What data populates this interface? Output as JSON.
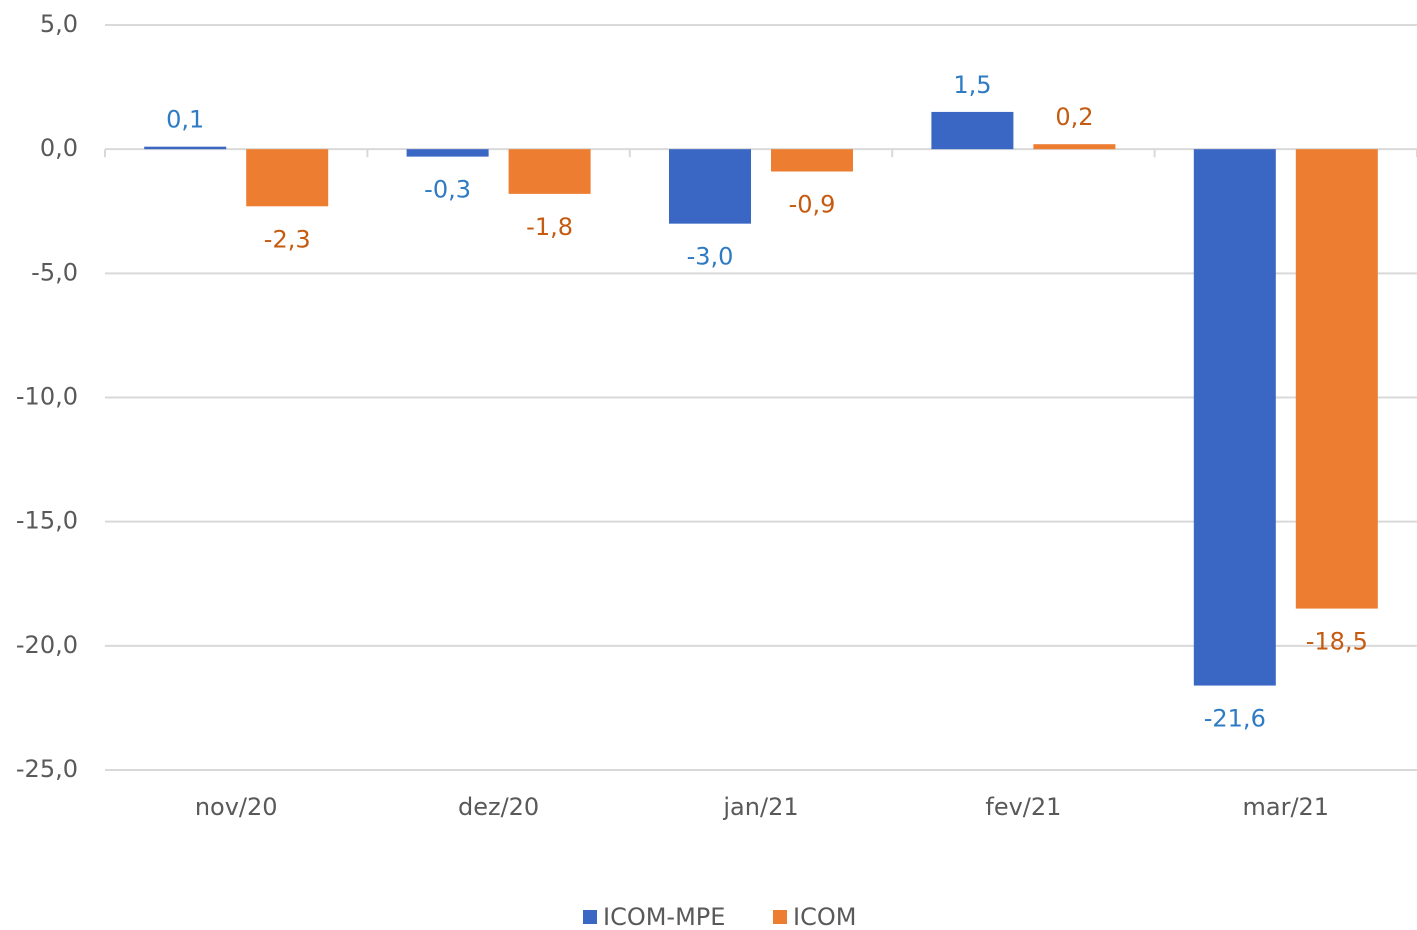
{
  "chart_data": {
    "type": "bar",
    "categories": [
      "nov/20",
      "dez/20",
      "jan/21",
      "fev/21",
      "mar/21"
    ],
    "series": [
      {
        "name": "ICOM-MPE",
        "color": "#3a66c4",
        "label_color": "#2e7bc4",
        "values": [
          0.1,
          -0.3,
          -3.0,
          1.5,
          -21.6
        ],
        "value_labels": [
          "0,1",
          "-0,3",
          "-3,0",
          "1,5",
          "-21,6"
        ]
      },
      {
        "name": "ICOM",
        "color": "#ed7d31",
        "label_color": "#c55a11",
        "values": [
          -2.3,
          -1.8,
          -0.9,
          0.2,
          -18.5
        ],
        "value_labels": [
          "-2,3",
          "-1,8",
          "-0,9",
          "0,2",
          "-18,5"
        ]
      }
    ],
    "ylim": [
      -25,
      5
    ],
    "yticks": [
      {
        "value": 5,
        "label": "5,0"
      },
      {
        "value": 0,
        "label": "0,0"
      },
      {
        "value": -5,
        "label": "-5,0"
      },
      {
        "value": -10,
        "label": "-10,0"
      },
      {
        "value": -15,
        "label": "-15,0"
      },
      {
        "value": -20,
        "label": "-20,0"
      },
      {
        "value": -25,
        "label": "-25,0"
      }
    ],
    "grid": true,
    "legend": "bottom"
  }
}
